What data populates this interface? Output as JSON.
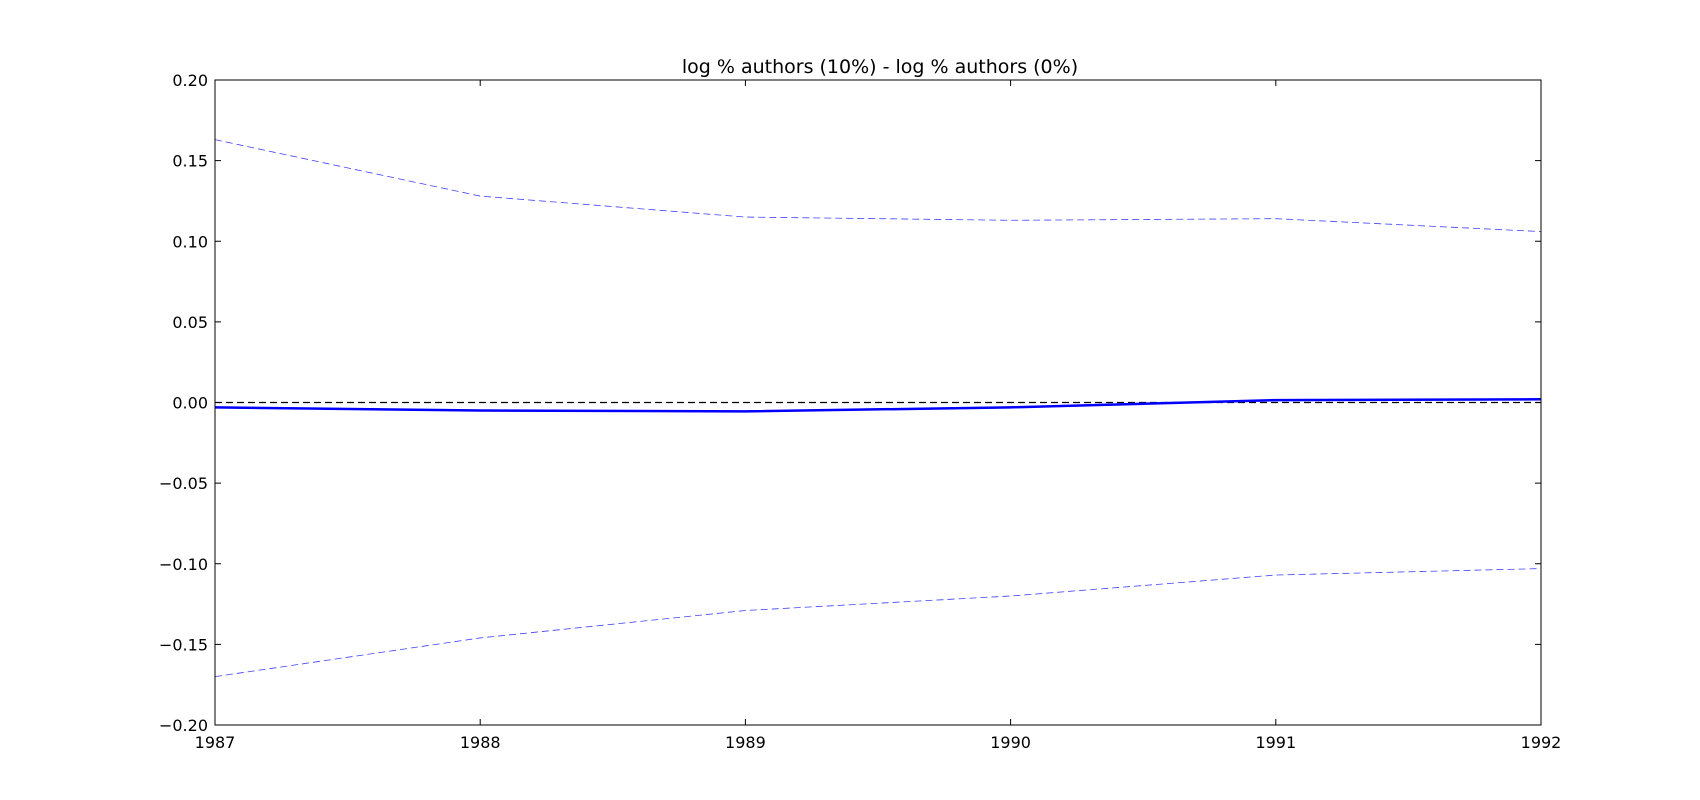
{
  "chart_data": {
    "type": "line",
    "title": "log % authors (10%) - log % authors (0%)",
    "xlabel": "",
    "ylabel": "",
    "xlim": [
      1987,
      1992
    ],
    "ylim": [
      -0.2,
      0.2
    ],
    "x_ticks": [
      1987,
      1988,
      1989,
      1990,
      1991,
      1992
    ],
    "x_tick_labels": [
      "1987",
      "1988",
      "1989",
      "1990",
      "1991",
      "1992"
    ],
    "y_ticks": [
      0.2,
      0.15,
      0.1,
      0.05,
      0.0,
      -0.05,
      -0.1,
      -0.15,
      -0.2
    ],
    "y_tick_labels": [
      "0.20",
      "0.15",
      "0.10",
      "0.05",
      "0.00",
      "−0.05",
      "−0.10",
      "−0.15",
      "−0.20"
    ],
    "grid": false,
    "legend": "none",
    "x": [
      1987,
      1988,
      1989,
      1990,
      1991,
      1992
    ],
    "series": [
      {
        "role": "estimate",
        "style": "solid",
        "color": "#0000ff",
        "values": [
          -0.003,
          -0.005,
          -0.0055,
          -0.003,
          0.0015,
          0.002
        ]
      },
      {
        "role": "upper-band",
        "style": "dashed",
        "color": "#0000ff",
        "values": [
          0.163,
          0.128,
          0.115,
          0.113,
          0.114,
          0.106
        ]
      },
      {
        "role": "lower-band",
        "style": "dashed",
        "color": "#0000ff",
        "values": [
          -0.17,
          -0.146,
          -0.129,
          -0.12,
          -0.107,
          -0.103
        ]
      },
      {
        "role": "zero-reference",
        "style": "dashed",
        "color": "#000000",
        "values": [
          0,
          0,
          0,
          0,
          0,
          0
        ]
      }
    ]
  }
}
